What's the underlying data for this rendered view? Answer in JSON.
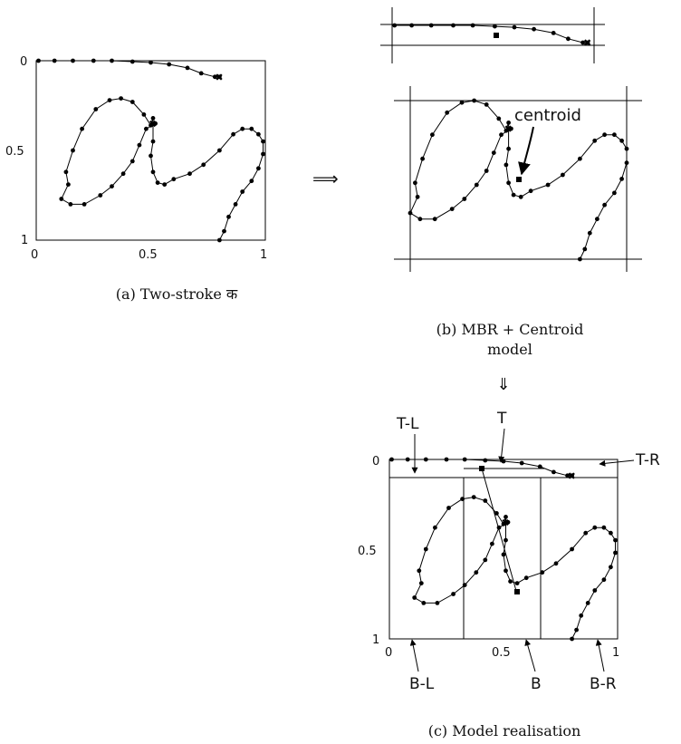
{
  "panel_a": {
    "y_ticks": [
      "0",
      "0.5",
      "1"
    ],
    "x_ticks": [
      "0",
      "0.5",
      "1"
    ],
    "caption": "(a) Two-stroke क"
  },
  "arrow_right": "⟹",
  "panel_b": {
    "centroid_label": "centroid",
    "caption_line1": "(b) MBR + Centroid",
    "caption_line2": "model"
  },
  "arrow_down": "⇓",
  "panel_c": {
    "y_ticks": [
      "0",
      "0.5",
      "1"
    ],
    "x_ticks": [
      "0",
      "0.5",
      "1"
    ],
    "labels": {
      "tl": "T-L",
      "t": "T",
      "tr": "T-R",
      "bl": "B-L",
      "b": "B",
      "br": "B-R"
    },
    "caption": "(c) Model realisation"
  }
}
